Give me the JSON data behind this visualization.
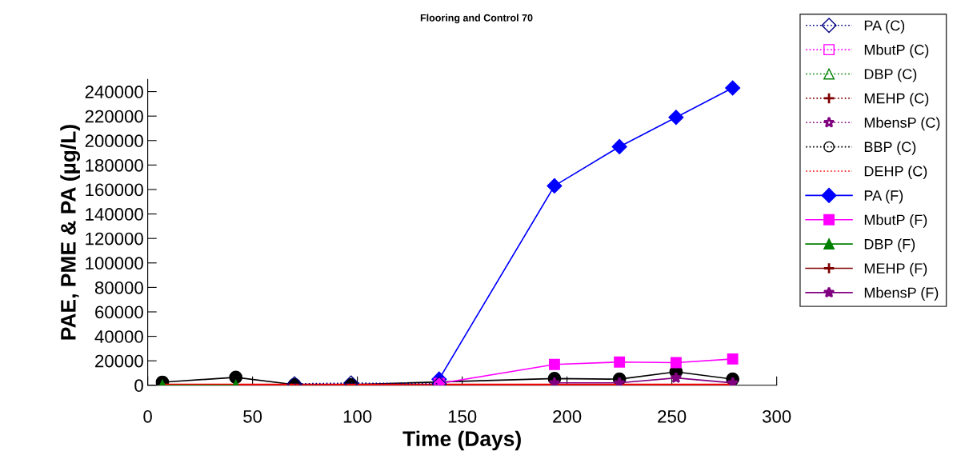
{
  "chart_data": {
    "type": "line",
    "title": "Flooring and Control 70",
    "xlabel": "Time (Days)",
    "ylabel": "PAE, PME & PA (µg/L)",
    "xlim": [
      0,
      300
    ],
    "xticks": [
      0,
      50,
      100,
      150,
      200,
      250,
      300
    ],
    "ylim": [
      0,
      250000
    ],
    "yticks": [
      0,
      20000,
      40000,
      60000,
      80000,
      100000,
      120000,
      140000,
      160000,
      180000,
      200000,
      220000,
      240000
    ],
    "grid": false,
    "legend": "right",
    "series": [
      {
        "name": "PA (C)",
        "color": "#000080",
        "marker": "diamond",
        "line_style": "dotted",
        "x": [
          70,
          97,
          139
        ],
        "values": [
          1200,
          1800,
          1200
        ]
      },
      {
        "name": "MbutP (C)",
        "color": "#ff00ff",
        "marker": "square",
        "line_style": "dotted"
      },
      {
        "name": "DBP (C)",
        "color": "#008000",
        "marker": "triangle",
        "line_style": "dotted"
      },
      {
        "name": "MEHP (C)",
        "color": "#800000",
        "marker": "cross",
        "line_style": "dotted"
      },
      {
        "name": "MbensP (C)",
        "color": "#800080",
        "marker": "star",
        "line_style": "dotted"
      },
      {
        "name": "BBP (C)",
        "color": "#000000",
        "marker": "circle",
        "line_style": "dotted"
      },
      {
        "name": "DEHP (C)",
        "color": "#ff0000",
        "marker": "none",
        "line_style": "dotted"
      },
      {
        "color": "#000000",
        "marker": "circle",
        "line_style": "solid",
        "x": [
          7,
          42,
          70,
          97,
          194,
          225,
          252,
          279
        ],
        "values": [
          2500,
          6500,
          500,
          500,
          5500,
          5000,
          11000,
          5000
        ]
      },
      {
        "color": "#ff0000",
        "marker": "none",
        "line_style": "solid",
        "x": [
          7,
          42,
          70,
          97,
          194,
          225,
          252,
          279
        ],
        "values": [
          500,
          500,
          500,
          500,
          500,
          500,
          500,
          500
        ]
      },
      {
        "name": "DBP (F)",
        "color": "#008000",
        "marker": "triangle",
        "line_style": "solid",
        "x": [
          7,
          42
        ],
        "values": [
          0,
          0
        ]
      },
      {
        "name": "MEHP (F)",
        "color": "#800000",
        "marker": "cross",
        "line_style": "solid"
      },
      {
        "name": "MbensP (F)",
        "color": "#800080",
        "marker": "star",
        "line_style": "solid",
        "x": [
          194,
          225,
          252,
          279
        ],
        "values": [
          2000,
          2000,
          6000,
          2000
        ]
      },
      {
        "name": "PA (F)",
        "color": "#0000ff",
        "marker": "diamond",
        "line_style": "solid",
        "x": [
          139,
          194,
          225,
          252,
          279
        ],
        "values": [
          5000,
          163000,
          195000,
          219000,
          243000
        ]
      },
      {
        "name": "MbutP (F)",
        "color": "#ff00ff",
        "marker": "square",
        "line_style": "solid",
        "x": [
          139,
          194,
          225,
          252,
          279
        ],
        "values": [
          1500,
          17000,
          19000,
          18500,
          21500
        ]
      }
    ]
  }
}
